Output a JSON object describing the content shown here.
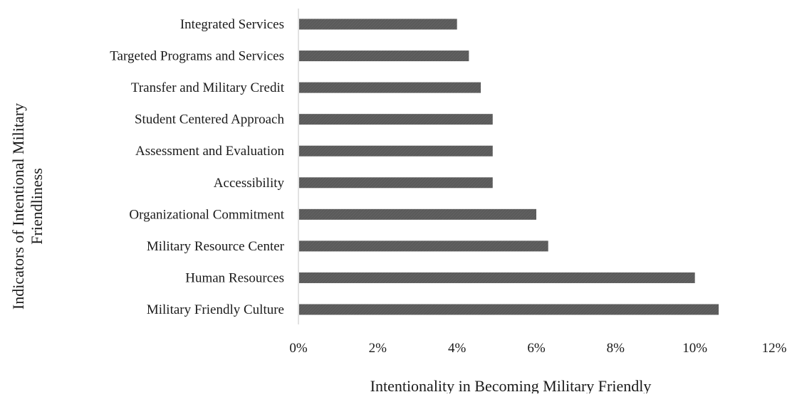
{
  "chart_data": {
    "type": "bar",
    "orientation": "horizontal",
    "title": "",
    "xlabel": "Intentionality in Becoming Military Friendly",
    "ylabel_lines": [
      "Indicators of Intentional Military",
      "Friendliness"
    ],
    "categories": [
      "Integrated Services",
      "Targeted Programs and Services",
      "Transfer and Military Credit",
      "Student Centered Approach",
      "Assessment and Evaluation",
      "Accessibility",
      "Organizational Commitment",
      "Military Resource Center",
      "Human Resources",
      "Military Friendly Culture"
    ],
    "values": [
      4.0,
      4.3,
      4.6,
      4.9,
      4.9,
      4.9,
      6.0,
      6.3,
      10.0,
      10.6
    ],
    "xlim": [
      0,
      12
    ],
    "xticks": [
      0,
      2,
      4,
      6,
      8,
      10,
      12
    ],
    "tick_suffix": "%",
    "grid": false,
    "legend": "none",
    "colors": {
      "bar": "#5a5a5a",
      "axis": "#d9d9d9",
      "text": "#1a1a1a"
    }
  }
}
